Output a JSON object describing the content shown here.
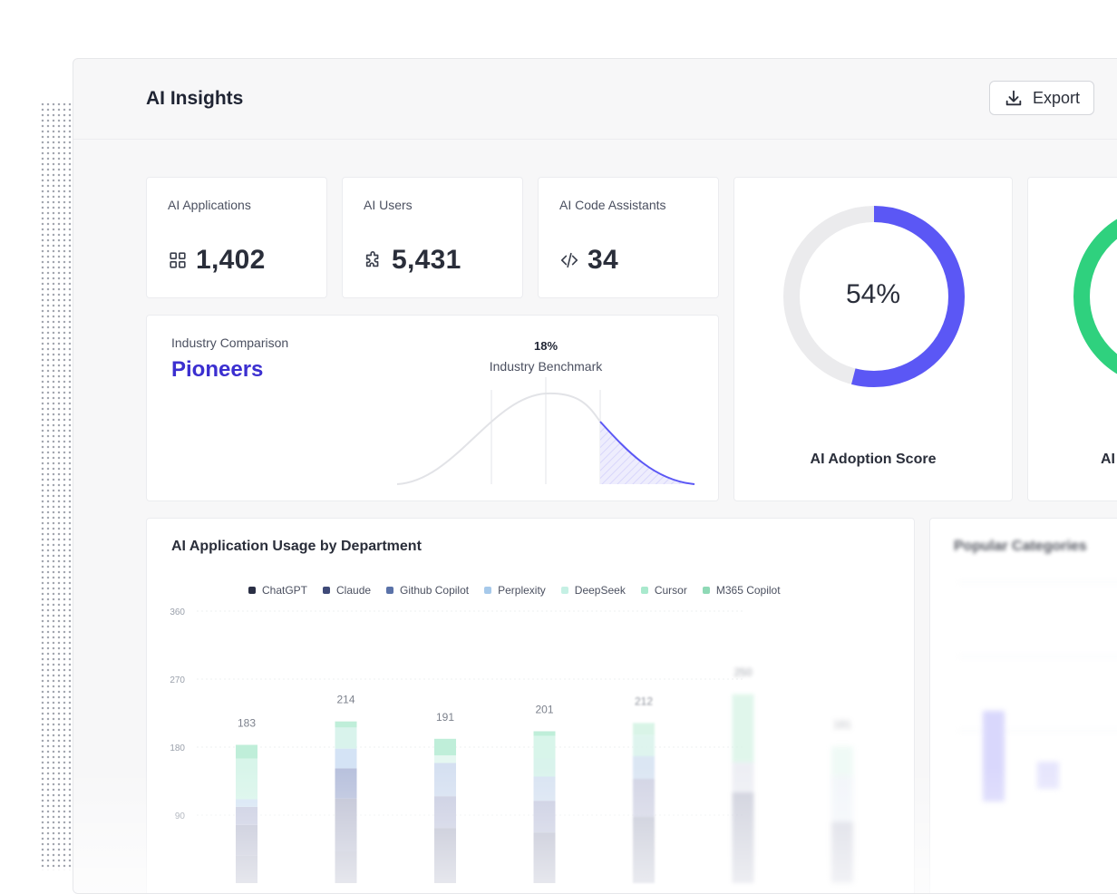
{
  "header": {
    "title": "AI Insights",
    "export_label": "Export"
  },
  "stats": [
    {
      "label": "AI Applications",
      "value": "1,402",
      "icon": "grid-icon"
    },
    {
      "label": "AI Users",
      "value": "5,431",
      "icon": "puzzle-icon"
    },
    {
      "label": "AI Code Assistants",
      "value": "34",
      "icon": "code-icon"
    }
  ],
  "industry": {
    "label": "Industry Comparison",
    "tier": "Pioneers",
    "benchmark_pct": "18%",
    "benchmark_label": "Industry Benchmark"
  },
  "adoption": {
    "score_text": "54%",
    "score": 54,
    "label": "AI Adoption Score",
    "color": "#5b57f5"
  },
  "second_score": {
    "label": "AI",
    "color": "#2fd17e"
  },
  "usage": {
    "title": "AI Application Usage by Department"
  },
  "popular": {
    "title": "Popular Categories"
  },
  "chart_data": {
    "type": "bar",
    "title": "AI Application Usage by Department",
    "legend": [
      {
        "name": "ChatGPT",
        "color": "#2a2f45"
      },
      {
        "name": "Claude",
        "color": "#3f4a78"
      },
      {
        "name": "Github Copilot",
        "color": "#5a72a8"
      },
      {
        "name": "Perplexity",
        "color": "#a6c9ea"
      },
      {
        "name": "DeepSeek",
        "color": "#c5f0e4"
      },
      {
        "name": "Cursor",
        "color": "#a9e9cd"
      },
      {
        "name": "M365 Copilot",
        "color": "#8fd9b6"
      }
    ],
    "yticks": [
      360,
      270,
      180,
      90
    ],
    "ylim": [
      0,
      360
    ],
    "totals": [
      183,
      214,
      191,
      201,
      212,
      250,
      181
    ],
    "segments": [
      [
        {
          "v": 40,
          "c": "#bcbfd2"
        },
        {
          "v": 24,
          "c": "#c7cbe0"
        },
        {
          "v": 10,
          "c": "#d5e4f4"
        },
        {
          "v": 54,
          "c": "#d8f5ea"
        },
        {
          "v": 18,
          "c": "#bfeed9"
        }
      ],
      [
        {
          "v": 70,
          "c": "#bcbfd2"
        },
        {
          "v": 40,
          "c": "#b7c0dc"
        },
        {
          "v": 26,
          "c": "#d4e3f5"
        },
        {
          "v": 28,
          "c": "#d9f3ec"
        },
        {
          "v": 8,
          "c": "#bfeed9"
        }
      ],
      [
        {
          "v": 42,
          "c": "#c7cbe0"
        },
        {
          "v": 44,
          "c": "#d5e0f1"
        },
        {
          "v": 10,
          "c": "#e5f7f1"
        },
        {
          "v": 22,
          "c": "#bfeed9"
        }
      ],
      [
        {
          "v": 42,
          "c": "#c7cbe0"
        },
        {
          "v": 32,
          "c": "#d8e3f2"
        },
        {
          "v": 24,
          "c": "#d9f3ec"
        },
        {
          "v": 30,
          "c": "#d8f5ea"
        },
        {
          "v": 6,
          "c": "#bfeed9"
        }
      ],
      [
        {
          "v": 50,
          "c": "#c9cce0"
        },
        {
          "v": 30,
          "c": "#d5e2f2"
        },
        {
          "v": 28,
          "c": "#d9f3ec"
        },
        {
          "v": 16,
          "c": "#d3f3e3"
        }
      ],
      [
        {
          "v": 40,
          "c": "#e6e8f0"
        },
        {
          "v": 90,
          "c": "#d3f3e3"
        }
      ],
      [
        {
          "v": 60,
          "c": "#e8eef6"
        },
        {
          "v": 40,
          "c": "#e3f6ef"
        }
      ]
    ]
  }
}
